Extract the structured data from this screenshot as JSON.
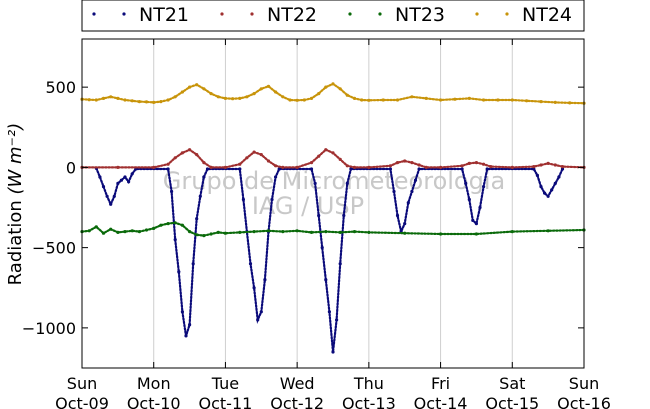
{
  "chart_data": {
    "type": "scatter",
    "title": "",
    "ylabel": "Radiation",
    "ylabel_unit": "(W m⁻²)",
    "ylim": [
      -1250,
      800
    ],
    "yticks": [
      500,
      0,
      -500,
      -1000
    ],
    "ytick_labels": [
      "500",
      "0",
      "−500",
      "−1000"
    ],
    "xlim": [
      0,
      7
    ],
    "xticks": [
      0,
      1,
      2,
      3,
      4,
      5,
      6,
      7
    ],
    "xtick_labels": [
      [
        "Sun",
        "Oct-09"
      ],
      [
        "Mon",
        "Oct-10"
      ],
      [
        "Tue",
        "Oct-11"
      ],
      [
        "Wed",
        "Oct-12"
      ],
      [
        "Thu",
        "Oct-13"
      ],
      [
        "Fri",
        "Oct-14"
      ],
      [
        "Sat",
        "Oct-15"
      ],
      [
        "Sun",
        "Oct-16"
      ]
    ],
    "grid": "vertical",
    "legend_position": "top",
    "watermark": [
      "Grupo de Micrometeorologia",
      "IAG / USP"
    ],
    "series": [
      {
        "name": "NT21",
        "color": "#0a0a7a",
        "x": [
          0.2,
          0.25,
          0.3,
          0.35,
          0.4,
          0.45,
          0.5,
          0.55,
          0.6,
          0.65,
          0.7,
          0.75,
          1.2,
          1.25,
          1.3,
          1.35,
          1.4,
          1.45,
          1.5,
          1.55,
          1.6,
          1.65,
          1.7,
          1.75,
          2.2,
          2.25,
          2.3,
          2.35,
          2.4,
          2.45,
          2.5,
          2.55,
          2.6,
          2.65,
          2.7,
          2.75,
          3.2,
          3.25,
          3.3,
          3.35,
          3.4,
          3.45,
          3.5,
          3.55,
          3.6,
          3.65,
          3.7,
          3.75,
          4.3,
          4.35,
          4.4,
          4.45,
          4.5,
          4.55,
          4.6,
          4.65,
          4.7,
          5.3,
          5.35,
          5.4,
          5.45,
          5.5,
          5.55,
          5.6,
          5.65,
          6.3,
          6.35,
          6.4,
          6.45,
          6.5,
          6.55,
          6.6,
          6.65,
          6.7
        ],
        "y": [
          -5,
          -60,
          -120,
          -180,
          -230,
          -180,
          -100,
          -80,
          -60,
          -90,
          -40,
          -10,
          -10,
          -150,
          -450,
          -650,
          -900,
          -1050,
          -980,
          -600,
          -320,
          -180,
          -60,
          -10,
          -10,
          -200,
          -400,
          -600,
          -750,
          -950,
          -900,
          -700,
          -400,
          -200,
          -60,
          -10,
          -10,
          -100,
          -300,
          -500,
          -700,
          -900,
          -1150,
          -950,
          -600,
          -300,
          -100,
          -10,
          -10,
          -150,
          -300,
          -400,
          -350,
          -220,
          -150,
          -80,
          -10,
          -10,
          -100,
          -200,
          -330,
          -350,
          -250,
          -120,
          -10,
          -10,
          -50,
          -120,
          -160,
          -180,
          -140,
          -100,
          -60,
          -10
        ]
      },
      {
        "name": "NT22",
        "color": "#a03030",
        "x": [
          0.0,
          0.5,
          1.0,
          1.2,
          1.3,
          1.4,
          1.5,
          1.6,
          1.7,
          1.8,
          2.0,
          2.2,
          2.3,
          2.4,
          2.5,
          2.6,
          2.7,
          2.8,
          3.0,
          3.2,
          3.3,
          3.4,
          3.5,
          3.6,
          3.7,
          3.8,
          4.0,
          4.3,
          4.4,
          4.5,
          4.6,
          4.7,
          4.8,
          5.0,
          5.3,
          5.4,
          5.5,
          5.6,
          5.7,
          6.0,
          6.3,
          6.4,
          6.5,
          6.6,
          6.7,
          7.0
        ],
        "y": [
          0,
          0,
          0,
          20,
          60,
          90,
          110,
          80,
          30,
          0,
          0,
          20,
          60,
          95,
          80,
          40,
          10,
          0,
          0,
          30,
          70,
          110,
          90,
          50,
          10,
          0,
          0,
          10,
          30,
          40,
          30,
          15,
          0,
          0,
          10,
          25,
          30,
          20,
          5,
          0,
          5,
          15,
          25,
          15,
          5,
          0
        ]
      },
      {
        "name": "NT23",
        "color": "#0a6a0a",
        "x": [
          0.0,
          0.1,
          0.2,
          0.3,
          0.4,
          0.5,
          0.6,
          0.7,
          0.8,
          0.9,
          1.0,
          1.1,
          1.2,
          1.3,
          1.4,
          1.5,
          1.6,
          1.7,
          1.8,
          1.9,
          2.0,
          2.2,
          2.4,
          2.6,
          2.8,
          3.0,
          3.2,
          3.4,
          3.6,
          3.8,
          4.0,
          4.5,
          5.0,
          5.5,
          6.0,
          6.5,
          7.0
        ],
        "y": [
          -400,
          -395,
          -370,
          -410,
          -385,
          -405,
          -400,
          -395,
          -400,
          -390,
          -380,
          -360,
          -350,
          -345,
          -360,
          -400,
          -420,
          -425,
          -415,
          -405,
          -410,
          -405,
          -400,
          -395,
          -400,
          -395,
          -405,
          -400,
          -405,
          -400,
          -405,
          -410,
          -415,
          -415,
          -400,
          -395,
          -390
        ]
      },
      {
        "name": "NT24",
        "color": "#c8940a",
        "x": [
          0.0,
          0.1,
          0.2,
          0.3,
          0.4,
          0.5,
          0.6,
          0.7,
          0.8,
          0.9,
          1.0,
          1.1,
          1.2,
          1.3,
          1.4,
          1.5,
          1.6,
          1.7,
          1.8,
          1.9,
          2.0,
          2.1,
          2.2,
          2.3,
          2.4,
          2.5,
          2.6,
          2.7,
          2.8,
          2.9,
          3.0,
          3.1,
          3.2,
          3.3,
          3.4,
          3.5,
          3.6,
          3.7,
          3.8,
          3.9,
          4.0,
          4.2,
          4.4,
          4.6,
          4.8,
          5.0,
          5.2,
          5.4,
          5.6,
          5.8,
          6.0,
          6.2,
          6.4,
          6.6,
          6.8,
          7.0
        ],
        "y": [
          425,
          422,
          420,
          430,
          440,
          430,
          420,
          415,
          410,
          408,
          405,
          410,
          420,
          440,
          470,
          500,
          515,
          490,
          460,
          440,
          430,
          428,
          430,
          440,
          460,
          490,
          505,
          470,
          440,
          420,
          418,
          420,
          430,
          460,
          500,
          520,
          490,
          450,
          430,
          420,
          418,
          420,
          420,
          440,
          430,
          420,
          425,
          430,
          420,
          420,
          420,
          415,
          410,
          405,
          402,
          400
        ]
      }
    ]
  }
}
